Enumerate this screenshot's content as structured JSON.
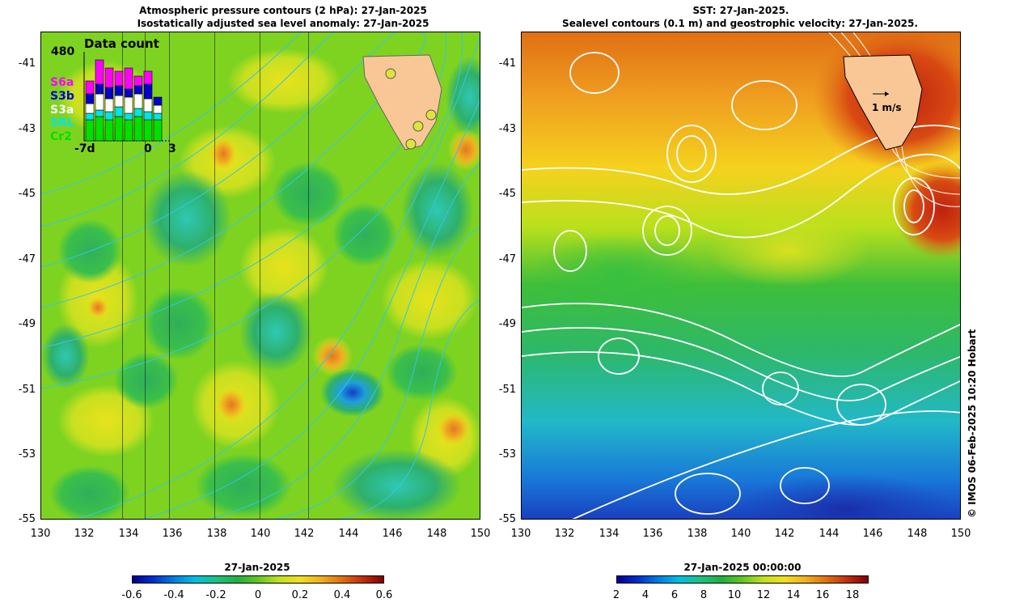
{
  "left_panel": {
    "title_line1": "Atmospheric pressure contours (2 hPa): 27-Jan-2025",
    "title_line2": "Isostatically adjusted sea level anomaly: 27-Jan-2025",
    "y_ticks": [
      "-41",
      "-43",
      "-45",
      "-47",
      "-49",
      "-51",
      "-53",
      "-55"
    ],
    "x_ticks": [
      "130",
      "132",
      "134",
      "136",
      "138",
      "140",
      "142",
      "144",
      "146",
      "148",
      "150"
    ],
    "colorbar": {
      "title": "27-Jan-2025",
      "ticks": [
        "-0.6",
        "-0.4",
        "-0.2",
        "0",
        "0.2",
        "0.4",
        "0.6"
      ]
    },
    "inset": {
      "title": "Data count",
      "max_label": "480",
      "satellites": [
        {
          "name": "S6a",
          "color": "#ff00ff"
        },
        {
          "name": "S3b",
          "color": "#0000cc"
        },
        {
          "name": "S3a",
          "color": "#ffffff"
        },
        {
          "name": "SRL",
          "color": "#00e5e5"
        },
        {
          "name": "Cr2",
          "color": "#00e000"
        }
      ],
      "x_labels": [
        "-7d",
        "0",
        "3"
      ]
    }
  },
  "right_panel": {
    "title_line1": "SST: 27-Jan-2025.",
    "title_line2": "Sealevel contours (0.1 m) and geostrophic velocity: 27-Jan-2025.",
    "y_ticks": [
      "-41",
      "-43",
      "-45",
      "-47",
      "-49",
      "-51",
      "-53",
      "-55"
    ],
    "x_ticks": [
      "130",
      "132",
      "134",
      "136",
      "138",
      "140",
      "142",
      "144",
      "146",
      "148",
      "150"
    ],
    "velocity_scale": "1 m/s",
    "colorbar": {
      "title": "27-Jan-2025 00:00:00",
      "ticks": [
        "2",
        "4",
        "6",
        "8",
        "10",
        "12",
        "14",
        "16",
        "18"
      ]
    }
  },
  "credit": "© IMOS 06-Feb-2025 10:20 Hobart"
}
